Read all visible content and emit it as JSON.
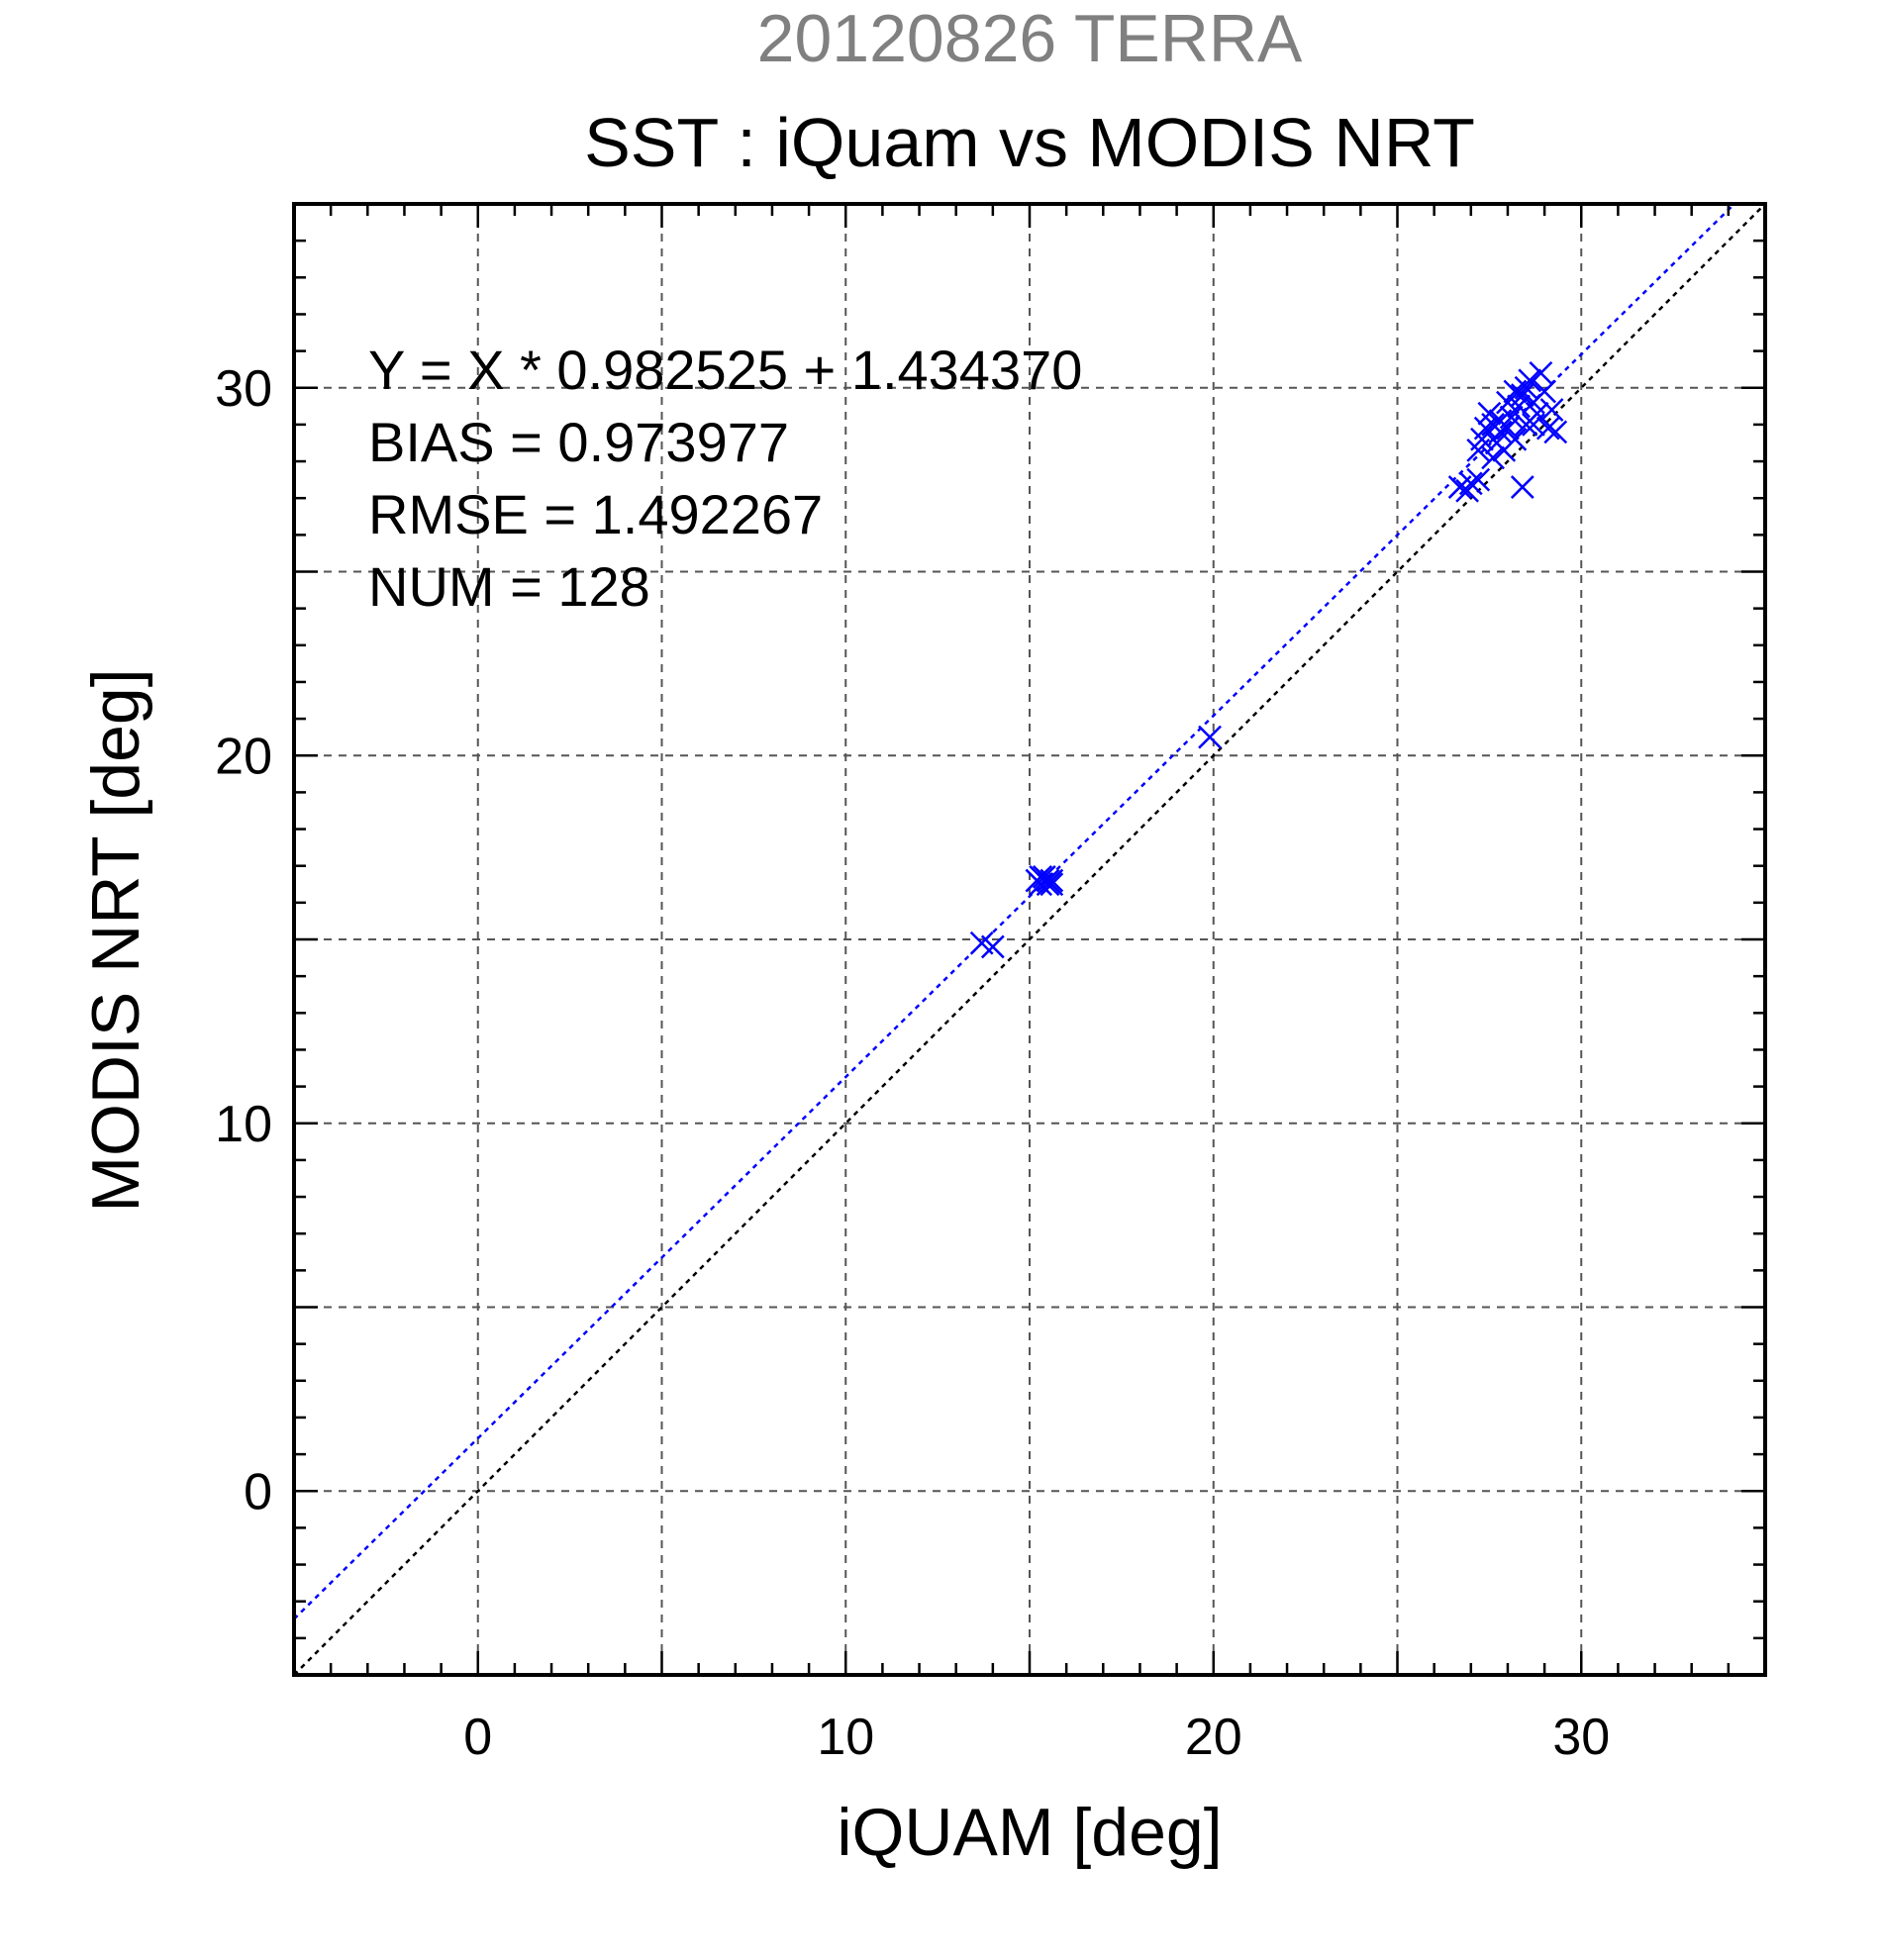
{
  "chart_data": {
    "type": "scatter",
    "suptitle": "20120826 TERRA",
    "title": "SST : iQuam vs MODIS NRT",
    "xlabel": "iQUAM [deg]",
    "ylabel": "MODIS NRT [deg]",
    "xlim": [
      -5,
      35
    ],
    "ylim": [
      -5,
      35
    ],
    "xticks": [
      0,
      10,
      20,
      30
    ],
    "yticks": [
      0,
      10,
      20,
      30
    ],
    "grid": true,
    "grid_step": 5,
    "stats": [
      "Y = X * 0.982525 + 1.434370",
      "BIAS = 0.973977",
      "RMSE = 1.492267",
      "NUM = 128"
    ],
    "regression": {
      "slope": 0.982525,
      "intercept": 1.43437,
      "color": "#0000ff"
    },
    "identity_line_color": "#000000",
    "marker_color": "#0000ff",
    "marker": "x",
    "points": [
      [
        13.7,
        14.9
      ],
      [
        14.0,
        14.8
      ],
      [
        15.2,
        16.6
      ],
      [
        15.3,
        16.5
      ],
      [
        15.4,
        16.7
      ],
      [
        15.5,
        16.5
      ],
      [
        15.6,
        16.6
      ],
      [
        15.3,
        16.7
      ],
      [
        15.5,
        16.6
      ],
      [
        15.6,
        16.5
      ],
      [
        19.9,
        20.5
      ],
      [
        26.7,
        27.3
      ],
      [
        26.9,
        27.2
      ],
      [
        27.0,
        27.4
      ],
      [
        27.2,
        27.5
      ],
      [
        27.2,
        28.3
      ],
      [
        27.3,
        28.6
      ],
      [
        27.4,
        28.9
      ],
      [
        27.5,
        29.3
      ],
      [
        27.6,
        28.1
      ],
      [
        27.7,
        28.5
      ],
      [
        27.8,
        28.8
      ],
      [
        27.8,
        29.1
      ],
      [
        27.9,
        28.3
      ],
      [
        28.0,
        28.9
      ],
      [
        28.1,
        29.2
      ],
      [
        28.2,
        28.6
      ],
      [
        28.3,
        29.5
      ],
      [
        28.4,
        27.3
      ],
      [
        28.4,
        29.8
      ],
      [
        28.5,
        29.0
      ],
      [
        28.6,
        30.2
      ],
      [
        28.7,
        29.6
      ],
      [
        28.8,
        29.3
      ],
      [
        28.9,
        30.4
      ],
      [
        29.0,
        29.9
      ],
      [
        29.1,
        28.9
      ],
      [
        29.2,
        29.4
      ],
      [
        29.3,
        28.8
      ],
      [
        28.0,
        29.6
      ],
      [
        27.6,
        29.0
      ],
      [
        28.2,
        29.9
      ],
      [
        28.5,
        30.0
      ],
      [
        28.7,
        29.0
      ]
    ]
  }
}
